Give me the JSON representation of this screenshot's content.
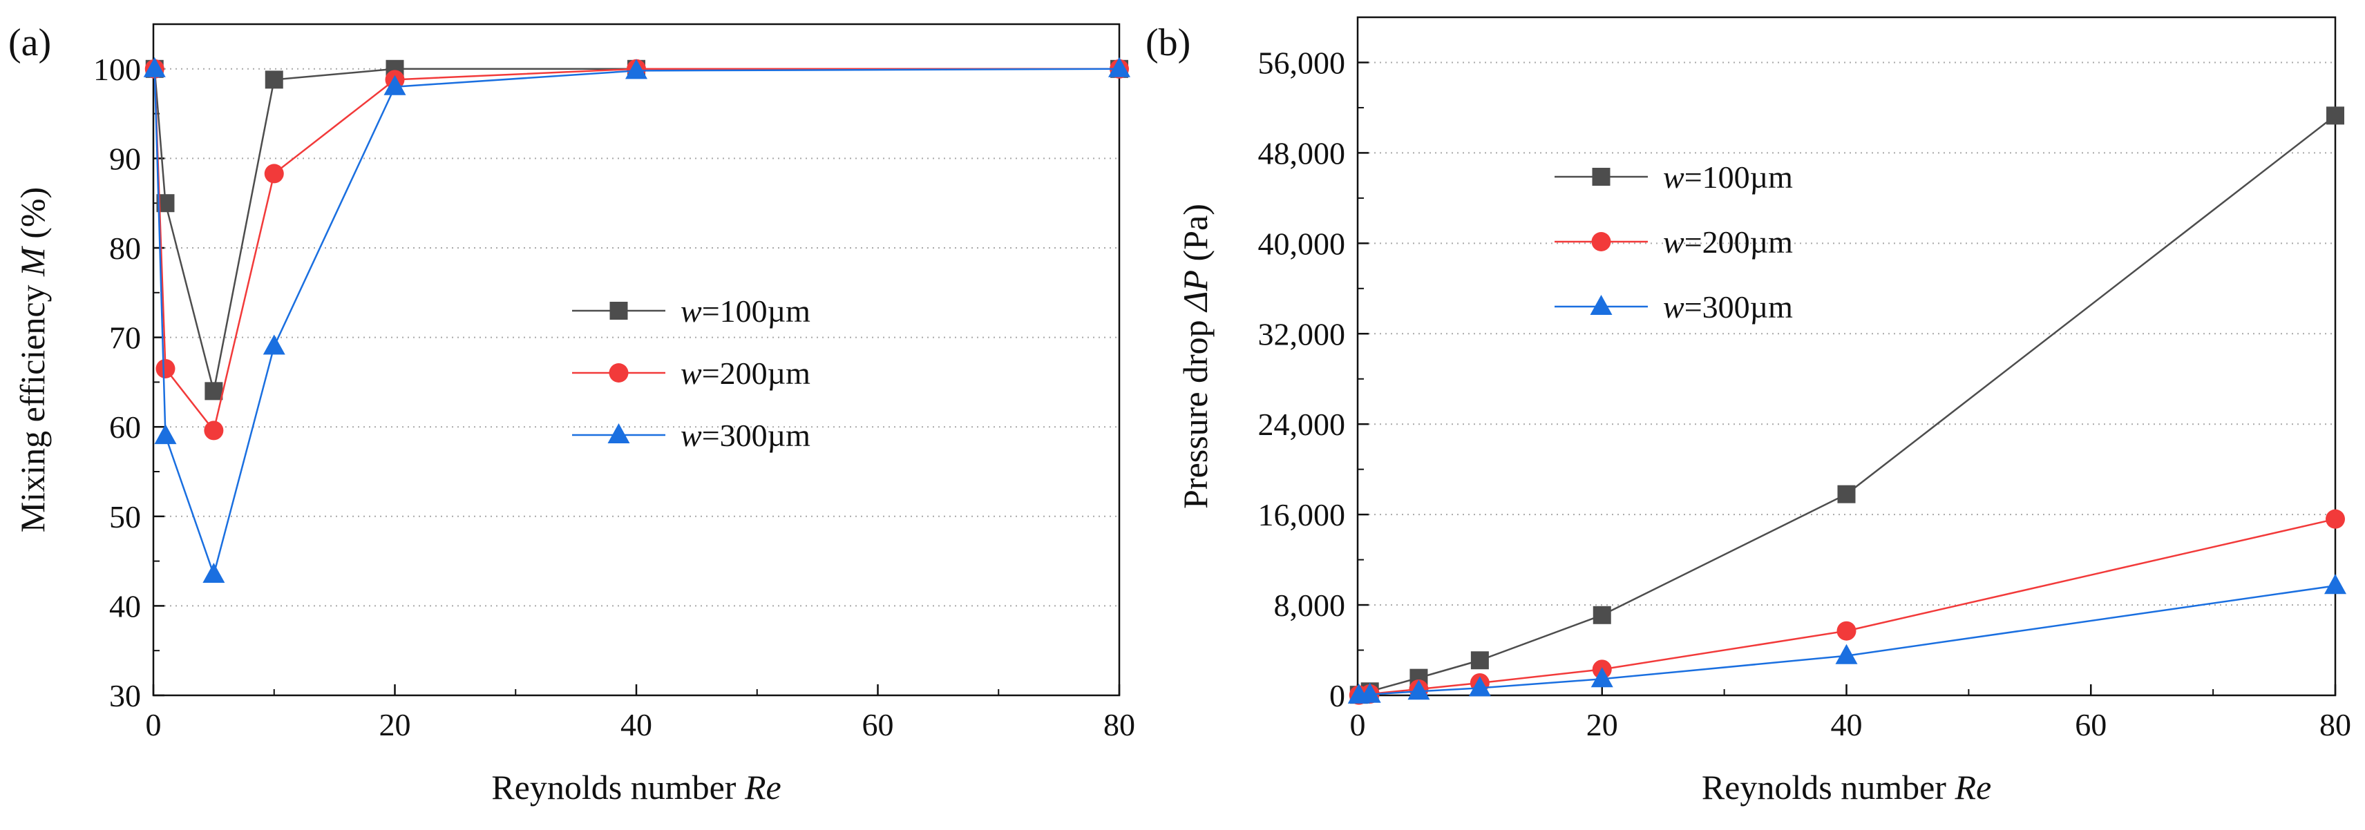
{
  "figure": {
    "panel_a_label": "(a)",
    "panel_b_label": "(b)"
  },
  "chart_data": [
    {
      "type": "line",
      "panel": "(a)",
      "title": "",
      "xlabel": "Reynolds number",
      "xlabel_var": "Re",
      "ylabel": "Mixing efficiency",
      "ylabel_var": "M",
      "ylabel_unit": "(%)",
      "xlim": [
        0,
        80
      ],
      "ylim": [
        30,
        105
      ],
      "xticks": [
        0,
        20,
        40,
        60,
        80
      ],
      "xtick_labels": [
        "0",
        "20",
        "40",
        "60",
        "80"
      ],
      "yticks": [
        30,
        40,
        50,
        60,
        70,
        80,
        90,
        100
      ],
      "ytick_labels": [
        "30",
        "40",
        "50",
        "60",
        "70",
        "80",
        "90",
        "100"
      ],
      "grid": "horizontal dotted",
      "legend_position": "center-right",
      "x": [
        0.1,
        1,
        5,
        10,
        20,
        40,
        80
      ],
      "series": [
        {
          "name": "w=100µm",
          "legend_var": "w",
          "legend_rest": "=100µm",
          "color": "#4d4d4d",
          "marker": "square",
          "values": [
            100,
            85,
            64,
            98.8,
            100,
            100,
            100
          ]
        },
        {
          "name": "w=200µm",
          "legend_var": "w",
          "legend_rest": "=200µm",
          "color": "#f23a3a",
          "marker": "circle",
          "values": [
            100,
            66.5,
            59.6,
            88.3,
            98.8,
            100,
            100
          ]
        },
        {
          "name": "w=300µm",
          "legend_var": "w",
          "legend_rest": "=300µm",
          "color": "#1a6fe0",
          "marker": "triangle",
          "values": [
            100,
            59,
            43.5,
            69,
            98,
            99.8,
            100
          ]
        }
      ]
    },
    {
      "type": "line",
      "panel": "(b)",
      "title": "",
      "xlabel": "Reynolds number",
      "xlabel_var": "Re",
      "ylabel": "Pressure drop",
      "ylabel_var": "ΔP",
      "ylabel_unit": "(Pa)",
      "xlim": [
        0,
        80
      ],
      "ylim": [
        0,
        60000
      ],
      "xticks": [
        0,
        20,
        40,
        60,
        80
      ],
      "xtick_labels": [
        "0",
        "20",
        "40",
        "60",
        "80"
      ],
      "yticks": [
        0,
        8000,
        16000,
        24000,
        32000,
        40000,
        48000,
        56000
      ],
      "ytick_labels": [
        "0",
        "8,000",
        "16,000",
        "24,000",
        "32,000",
        "40,000",
        "48,000",
        "56,000"
      ],
      "grid": "horizontal dotted",
      "legend_position": "upper-left",
      "x": [
        0.1,
        1,
        5,
        10,
        20,
        40,
        80
      ],
      "series": [
        {
          "name": "w=100µm",
          "legend_var": "w",
          "legend_rest": "=100µm",
          "color": "#4d4d4d",
          "marker": "square",
          "values": [
            50,
            350,
            1550,
            3100,
            7100,
            17800,
            51300
          ]
        },
        {
          "name": "w=200µm",
          "legend_var": "w",
          "legend_rest": "=200µm",
          "color": "#f23a3a",
          "marker": "circle",
          "values": [
            20,
            120,
            550,
            1100,
            2300,
            5700,
            15600
          ]
        },
        {
          "name": "w=300µm",
          "legend_var": "w",
          "legend_rest": "=300µm",
          "color": "#1a6fe0",
          "marker": "triangle",
          "values": [
            10,
            80,
            350,
            650,
            1450,
            3500,
            9700
          ]
        }
      ]
    }
  ]
}
